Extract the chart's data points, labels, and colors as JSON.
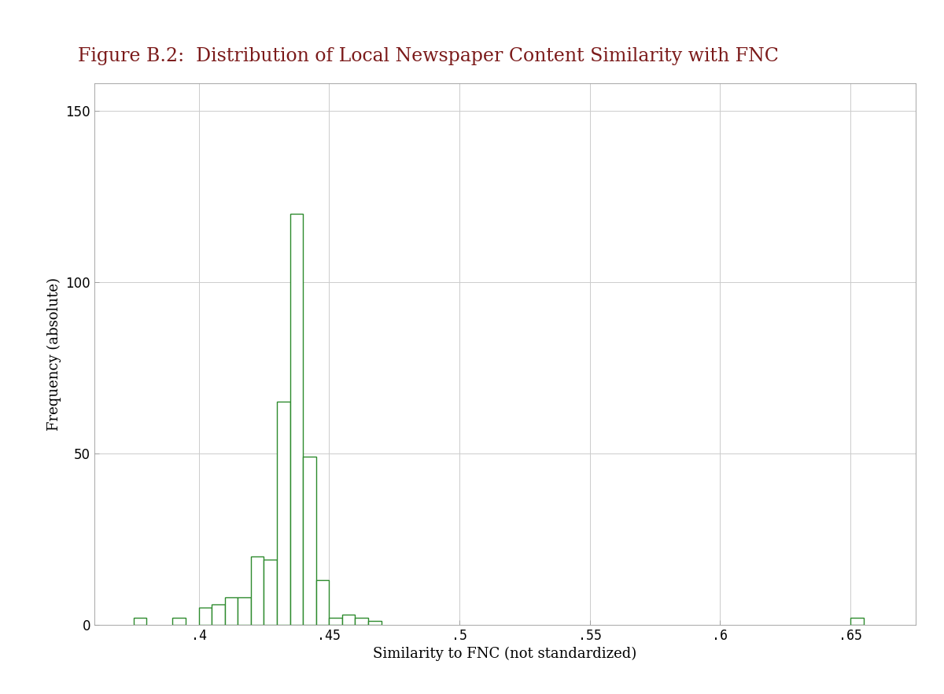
{
  "title": "Figure B.2:  Distribution of Local Newspaper Content Similarity with FNC",
  "xlabel": "Similarity to FNC (not standardized)",
  "ylabel": "Frequency (absolute)",
  "bin_width": 0.005,
  "bin_starts": [
    0.375,
    0.38,
    0.385,
    0.39,
    0.395,
    0.4,
    0.405,
    0.41,
    0.415,
    0.42,
    0.425,
    0.43,
    0.435,
    0.44,
    0.445,
    0.45,
    0.455,
    0.46,
    0.465,
    0.65
  ],
  "frequencies": [
    2,
    0,
    0,
    2,
    0,
    5,
    6,
    8,
    8,
    20,
    19,
    65,
    120,
    49,
    13,
    2,
    3,
    2,
    1,
    2
  ],
  "bar_edge_color": "#2d8a2d",
  "bar_face_color": "#ffffff",
  "xlim": [
    0.36,
    0.675
  ],
  "ylim": [
    0,
    158
  ],
  "yticks": [
    0,
    50,
    100,
    150
  ],
  "xticks": [
    0.4,
    0.45,
    0.5,
    0.55,
    0.6,
    0.65
  ],
  "xticklabels": [
    ".4",
    ".45",
    ".5",
    ".55",
    ".6",
    ".65"
  ],
  "grid_color": "#cccccc",
  "background_color": "#ffffff",
  "title_color": "#7b1a1a",
  "title_fontsize": 17,
  "axis_fontsize": 13,
  "tick_fontsize": 12
}
